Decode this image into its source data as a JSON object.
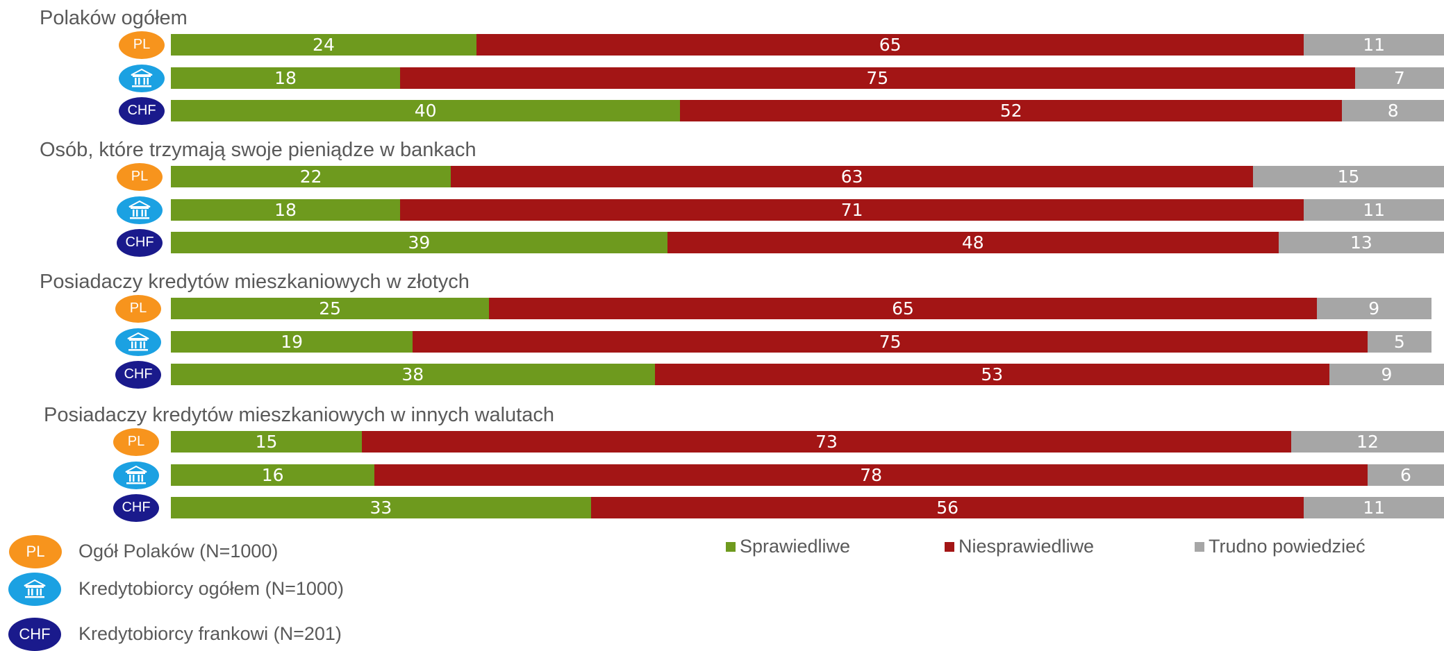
{
  "badges": {
    "pl": {
      "text": "PL",
      "icon": "pl-badge-icon",
      "color": "#F7941D"
    },
    "bank": {
      "text": "",
      "icon": "bank-building-icon",
      "color": "#1BA1E2"
    },
    "chf": {
      "text": "CHF",
      "icon": "chf-badge-icon",
      "color": "#1A1A8C"
    }
  },
  "respondent_legend": [
    {
      "badge": "pl",
      "label": "Ogół Polaków (N=1000)"
    },
    {
      "badge": "bank",
      "label": "Kredytobiorcy ogółem (N=1000)"
    },
    {
      "badge": "chf",
      "label": "Kredytobiorcy frankowi (N=201)"
    }
  ],
  "chart_data": {
    "type": "bar",
    "orientation": "horizontal",
    "stacked": true,
    "xlim": [
      0,
      100
    ],
    "unit": "%",
    "legend_position": "bottom-right",
    "series": [
      {
        "name": "Sprawiedliwe",
        "color": "#6E9A1E"
      },
      {
        "name": "Niesprawiedliwe",
        "color": "#A31515"
      },
      {
        "name": "Trudno powiedzieć",
        "color": "#A6A6A6"
      }
    ],
    "groups": [
      {
        "title": "Polaków ogółem",
        "bars": [
          {
            "badge": "pl",
            "values": [
              24,
              65,
              11
            ]
          },
          {
            "badge": "bank",
            "values": [
              18,
              75,
              7
            ]
          },
          {
            "badge": "chf",
            "values": [
              40,
              52,
              8
            ]
          }
        ]
      },
      {
        "title": "Osób, które trzymają swoje pieniądze w bankach",
        "bars": [
          {
            "badge": "pl",
            "values": [
              22,
              63,
              15
            ]
          },
          {
            "badge": "bank",
            "values": [
              18,
              71,
              11
            ]
          },
          {
            "badge": "chf",
            "values": [
              39,
              48,
              13
            ]
          }
        ]
      },
      {
        "title": "Posiadaczy kredytów mieszkaniowych w złotych",
        "bars": [
          {
            "badge": "pl",
            "values": [
              25,
              65,
              9
            ]
          },
          {
            "badge": "bank",
            "values": [
              19,
              75,
              5
            ]
          },
          {
            "badge": "chf",
            "values": [
              38,
              53,
              9
            ]
          }
        ]
      },
      {
        "title": "Posiadaczy kredytów mieszkaniowych w innych walutach",
        "bars": [
          {
            "badge": "pl",
            "values": [
              15,
              73,
              12
            ]
          },
          {
            "badge": "bank",
            "values": [
              16,
              78,
              6
            ]
          },
          {
            "badge": "chf",
            "values": [
              33,
              56,
              11
            ]
          }
        ]
      }
    ]
  }
}
